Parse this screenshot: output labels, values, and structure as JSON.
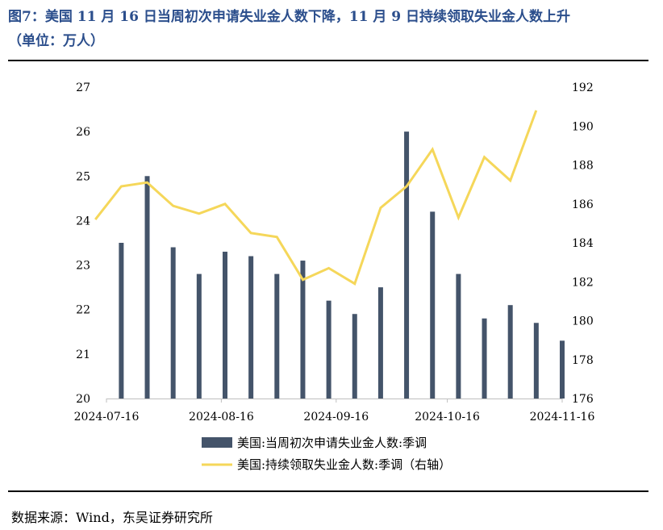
{
  "figure": {
    "title_line1": "图7：美国 11 月 16 日当周初次申请失业金人数下降，11 月 9 日持续领取失业金人数上升",
    "title_line2": "（单位：万人）",
    "source": "数据来源：Wind，东吴证券研究所"
  },
  "colors": {
    "title": "#2b4e8c",
    "bar": "#44546a",
    "line": "#f5d75a"
  },
  "chart_data": {
    "type": "bar",
    "dates": [
      "2024-07-13",
      "2024-07-20",
      "2024-07-27",
      "2024-08-03",
      "2024-08-10",
      "2024-08-17",
      "2024-08-24",
      "2024-08-31",
      "2024-09-07",
      "2024-09-14",
      "2024-09-21",
      "2024-09-28",
      "2024-10-05",
      "2024-10-12",
      "2024-10-19",
      "2024-10-26",
      "2024-11-02",
      "2024-11-09",
      "2024-11-16"
    ],
    "x_ticks": [
      "2024-07-16",
      "2024-08-16",
      "2024-09-16",
      "2024-10-16",
      "2024-11-16"
    ],
    "series": [
      {
        "name": "美国:当周初次申请失业金人数:季调",
        "axis": "left",
        "type": "bar",
        "values": [
          null,
          23.5,
          25.0,
          23.4,
          22.8,
          23.3,
          23.2,
          22.8,
          23.1,
          22.2,
          21.9,
          22.5,
          26.0,
          24.2,
          22.8,
          21.8,
          22.1,
          21.7,
          21.3
        ]
      },
      {
        "name": "美国:持续领取失业金人数:季调（右轴）",
        "axis": "right",
        "type": "line",
        "values": [
          185.2,
          186.9,
          187.1,
          185.9,
          185.5,
          186.0,
          184.5,
          184.3,
          182.1,
          182.7,
          181.9,
          185.8,
          186.9,
          188.8,
          185.3,
          188.4,
          187.2,
          190.8,
          null
        ]
      }
    ],
    "y_left": {
      "ticks": [
        "20",
        "21",
        "22",
        "23",
        "24",
        "25",
        "26",
        "27"
      ],
      "ylim": [
        20,
        27
      ]
    },
    "y_right": {
      "ticks": [
        "176",
        "178",
        "180",
        "182",
        "184",
        "186",
        "188",
        "190",
        "192"
      ],
      "ylim": [
        176,
        192
      ]
    },
    "legend_position": "bottom",
    "grid": false
  }
}
